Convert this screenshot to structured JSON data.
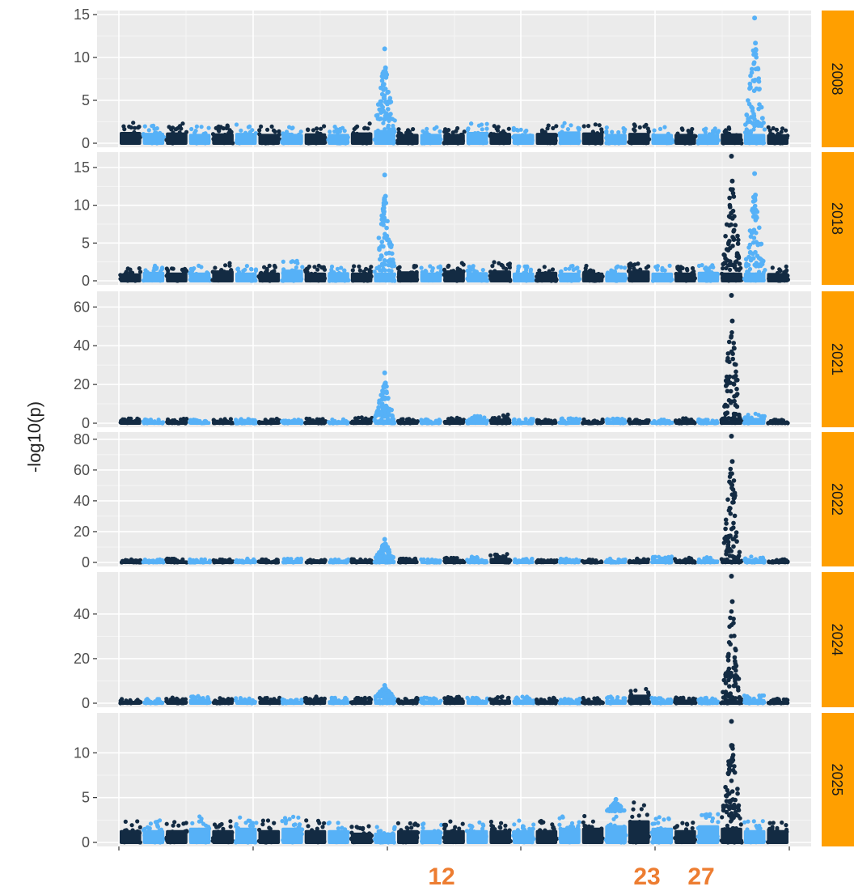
{
  "chart_data": {
    "type": "scatter",
    "subtype": "manhattan",
    "ylabel": "-log10(p)",
    "xlabel": "",
    "grid": true,
    "chromosome_count": 29,
    "colors": {
      "odd_chromosomes": "#132b43",
      "even_chromosomes": "#56b1f7",
      "panel_background": "#ebebeb",
      "strip_background": "#ff9f00",
      "annotation_text": "#ed7d31"
    },
    "bottom_annotations": [
      {
        "label": "12",
        "chromosome": 12
      },
      {
        "label": "23",
        "chromosome": 23
      },
      {
        "label": "27",
        "chromosome": 27
      }
    ],
    "panels": [
      {
        "strip": "2008",
        "ylim": [
          0,
          15
        ],
        "y_ticks": [
          0,
          5,
          10,
          15
        ],
        "y_tick_labels": [
          "0",
          "5",
          "10",
          "15"
        ],
        "baseline": [
          2.4,
          2.2,
          2.3,
          2.0,
          2.1,
          2.2,
          2.0,
          2.0,
          2.1,
          2.0,
          2.3,
          2.8,
          2.0,
          2.0,
          2.0,
          2.4,
          2.2,
          2.0,
          2.2,
          2.5,
          2.3,
          2.0,
          2.2,
          2.0,
          2.0,
          2.0,
          2.1,
          2.0,
          1.9
        ],
        "peaks": [
          {
            "chromosome": 12,
            "max": 11.0
          },
          {
            "chromosome": 28,
            "max": 14.6
          }
        ]
      },
      {
        "strip": "2018",
        "ylim": [
          0,
          16.5
        ],
        "y_ticks": [
          0,
          5,
          10,
          15
        ],
        "y_tick_labels": [
          "0",
          "5",
          "10",
          "15"
        ],
        "baseline": [
          1.8,
          2.2,
          2.0,
          2.0,
          2.5,
          2.0,
          2.0,
          2.7,
          2.0,
          2.1,
          2.0,
          2.0,
          2.3,
          2.0,
          2.5,
          2.1,
          2.5,
          2.0,
          2.2,
          2.0,
          2.0,
          2.0,
          2.5,
          2.0,
          2.0,
          2.2,
          2.0,
          2.0,
          1.9
        ],
        "peaks": [
          {
            "chromosome": 12,
            "max": 14.0
          },
          {
            "chromosome": 27,
            "max": 16.5
          },
          {
            "chromosome": 28,
            "max": 14.2
          }
        ]
      },
      {
        "strip": "2021",
        "ylim": [
          0,
          66
        ],
        "y_ticks": [
          0,
          20,
          40,
          60
        ],
        "y_tick_labels": [
          "0",
          "20",
          "40",
          "60"
        ],
        "baseline": [
          2.5,
          2.0,
          2.5,
          2.0,
          2.5,
          2.2,
          2.5,
          2.0,
          2.5,
          2.0,
          3.0,
          3.5,
          2.5,
          2.0,
          3.0,
          4.0,
          4.5,
          2.5,
          2.0,
          2.5,
          2.0,
          2.5,
          2.0,
          2.0,
          2.5,
          2.0,
          2.5,
          5.0,
          1.8
        ],
        "peaks": [
          {
            "chromosome": 12,
            "max": 26.0
          },
          {
            "chromosome": 27,
            "max": 66.0
          }
        ]
      },
      {
        "strip": "2022",
        "ylim": [
          0,
          82
        ],
        "y_ticks": [
          0,
          20,
          40,
          60,
          80
        ],
        "y_tick_labels": [
          "0",
          "20",
          "40",
          "60",
          "80"
        ],
        "baseline": [
          2.0,
          2.0,
          2.5,
          2.0,
          2.0,
          2.5,
          2.0,
          2.5,
          2.0,
          2.0,
          2.5,
          3.0,
          2.5,
          2.0,
          3.0,
          4.0,
          5.5,
          2.5,
          2.0,
          2.5,
          2.0,
          2.5,
          3.0,
          4.0,
          3.0,
          3.5,
          3.0,
          4.0,
          2.0
        ],
        "peaks": [
          {
            "chromosome": 12,
            "max": 15.0
          },
          {
            "chromosome": 27,
            "max": 82.0
          }
        ]
      },
      {
        "strip": "2024",
        "ylim": [
          0,
          57
        ],
        "y_ticks": [
          0,
          20,
          40
        ],
        "y_tick_labels": [
          "0",
          "20",
          "40"
        ],
        "baseline": [
          2.0,
          2.0,
          2.5,
          3.5,
          2.5,
          2.5,
          2.5,
          2.0,
          3.0,
          2.5,
          2.5,
          3.0,
          2.5,
          2.5,
          3.0,
          2.5,
          3.0,
          3.0,
          2.5,
          2.0,
          2.5,
          3.0,
          7.0,
          2.5,
          3.0,
          2.5,
          2.5,
          3.5,
          2.0
        ],
        "peaks": [
          {
            "chromosome": 12,
            "max": 8.0
          },
          {
            "chromosome": 27,
            "max": 57.0
          }
        ]
      },
      {
        "strip": "2025",
        "ylim": [
          0,
          14
        ],
        "y_ticks": [
          0,
          5,
          10
        ],
        "y_tick_labels": [
          "0",
          "5",
          "10"
        ],
        "baseline": [
          2.5,
          2.5,
          2.5,
          3.0,
          2.5,
          3.0,
          2.5,
          3.0,
          2.5,
          2.5,
          2.0,
          2.0,
          2.5,
          2.5,
          2.5,
          2.5,
          2.5,
          2.5,
          2.5,
          3.0,
          3.0,
          3.5,
          4.5,
          3.0,
          2.5,
          3.5,
          3.0,
          2.5,
          2.5
        ],
        "peaks": [
          {
            "chromosome": 22,
            "max": 4.8
          },
          {
            "chromosome": 27,
            "max": 13.5
          }
        ]
      }
    ]
  }
}
